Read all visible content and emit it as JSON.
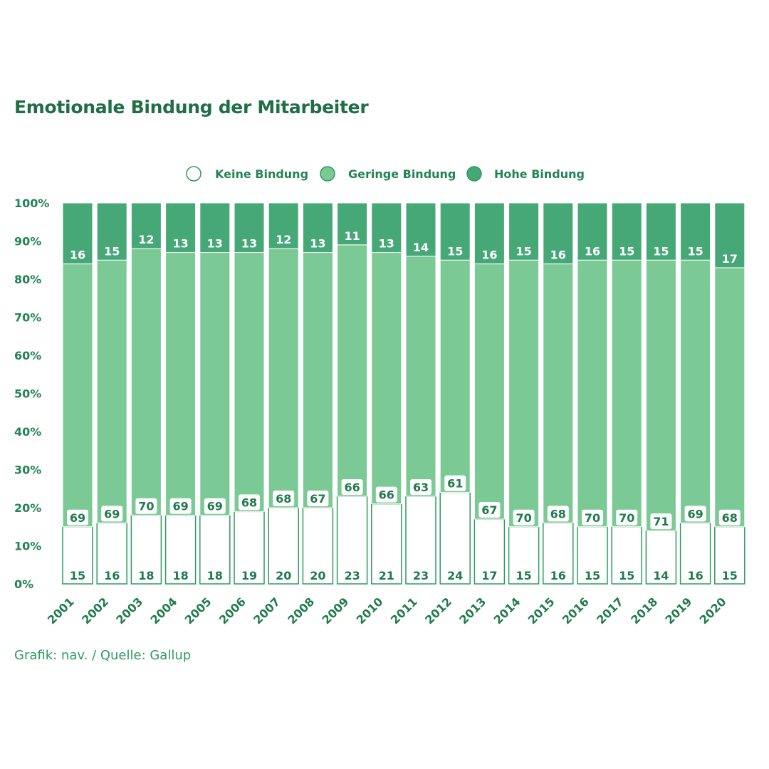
{
  "title": "Emotionale Bindung der Mitarbeiter",
  "source": "Grafik: nav. / Quelle: Gallup",
  "colors": {
    "keine": "#ffffff",
    "geringe": "#7bc995",
    "hohe": "#47a877",
    "outline": "#2e9a62",
    "text": "#1f7a4c"
  },
  "chart_data": {
    "type": "bar",
    "stacked": true,
    "title": "Emotionale Bindung der Mitarbeiter",
    "categories": [
      "2001",
      "2002",
      "2003",
      "2004",
      "2005",
      "2006",
      "2007",
      "2008",
      "2009",
      "2010",
      "2011",
      "2012",
      "2013",
      "2014",
      "2015",
      "2016",
      "2017",
      "2018",
      "2019",
      "2020"
    ],
    "series": [
      {
        "name": "Keine Bindung",
        "values": [
          15,
          16,
          18,
          18,
          18,
          19,
          20,
          20,
          23,
          21,
          23,
          24,
          17,
          15,
          16,
          15,
          15,
          14,
          16,
          15
        ]
      },
      {
        "name": "Geringe Bindung",
        "values": [
          69,
          69,
          70,
          69,
          69,
          68,
          68,
          67,
          66,
          66,
          63,
          61,
          67,
          70,
          68,
          70,
          70,
          71,
          69,
          68
        ]
      },
      {
        "name": "Hohe Bindung",
        "values": [
          16,
          15,
          12,
          13,
          13,
          13,
          12,
          13,
          11,
          13,
          14,
          15,
          16,
          15,
          16,
          16,
          15,
          15,
          15,
          17
        ]
      }
    ],
    "yticks": [
      "0%",
      "10%",
      "20%",
      "30%",
      "40%",
      "50%",
      "60%",
      "70%",
      "80%",
      "90%",
      "100%"
    ],
    "ylim": [
      0,
      100
    ],
    "legend_position": "top-center",
    "grid": false
  }
}
